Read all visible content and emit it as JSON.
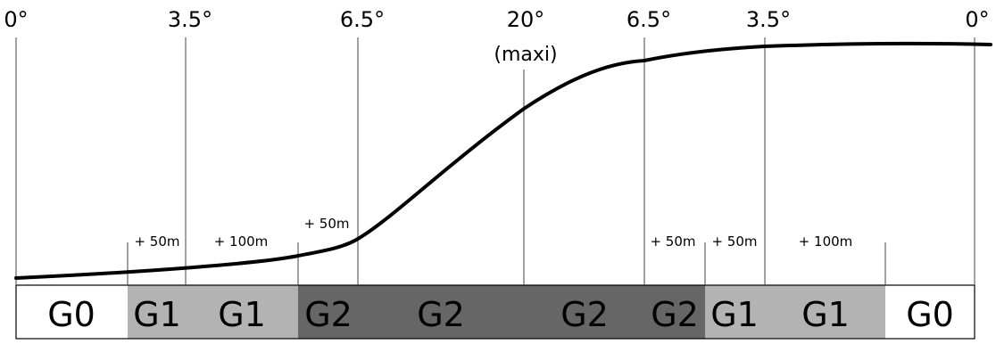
{
  "angle_labels": [
    "0°",
    "3.5°",
    "6.5°",
    "20°",
    "6.5°",
    "3.5°",
    "0°"
  ],
  "max_label": "(maxi)",
  "distance_labels": [
    "+ 50m",
    "+ 100m",
    "+ 50m",
    "+ 50m",
    "+ 50m",
    "+ 100m"
  ],
  "grades": [
    "G0",
    "G1",
    "G1",
    "G2",
    "G2",
    "G2",
    "G2",
    "G1",
    "G1",
    "G0"
  ],
  "colors": {
    "G0": "#ffffff",
    "G1": "#b3b3b3",
    "G2": "#666666",
    "curve": "#000000",
    "lines": "#444444"
  }
}
